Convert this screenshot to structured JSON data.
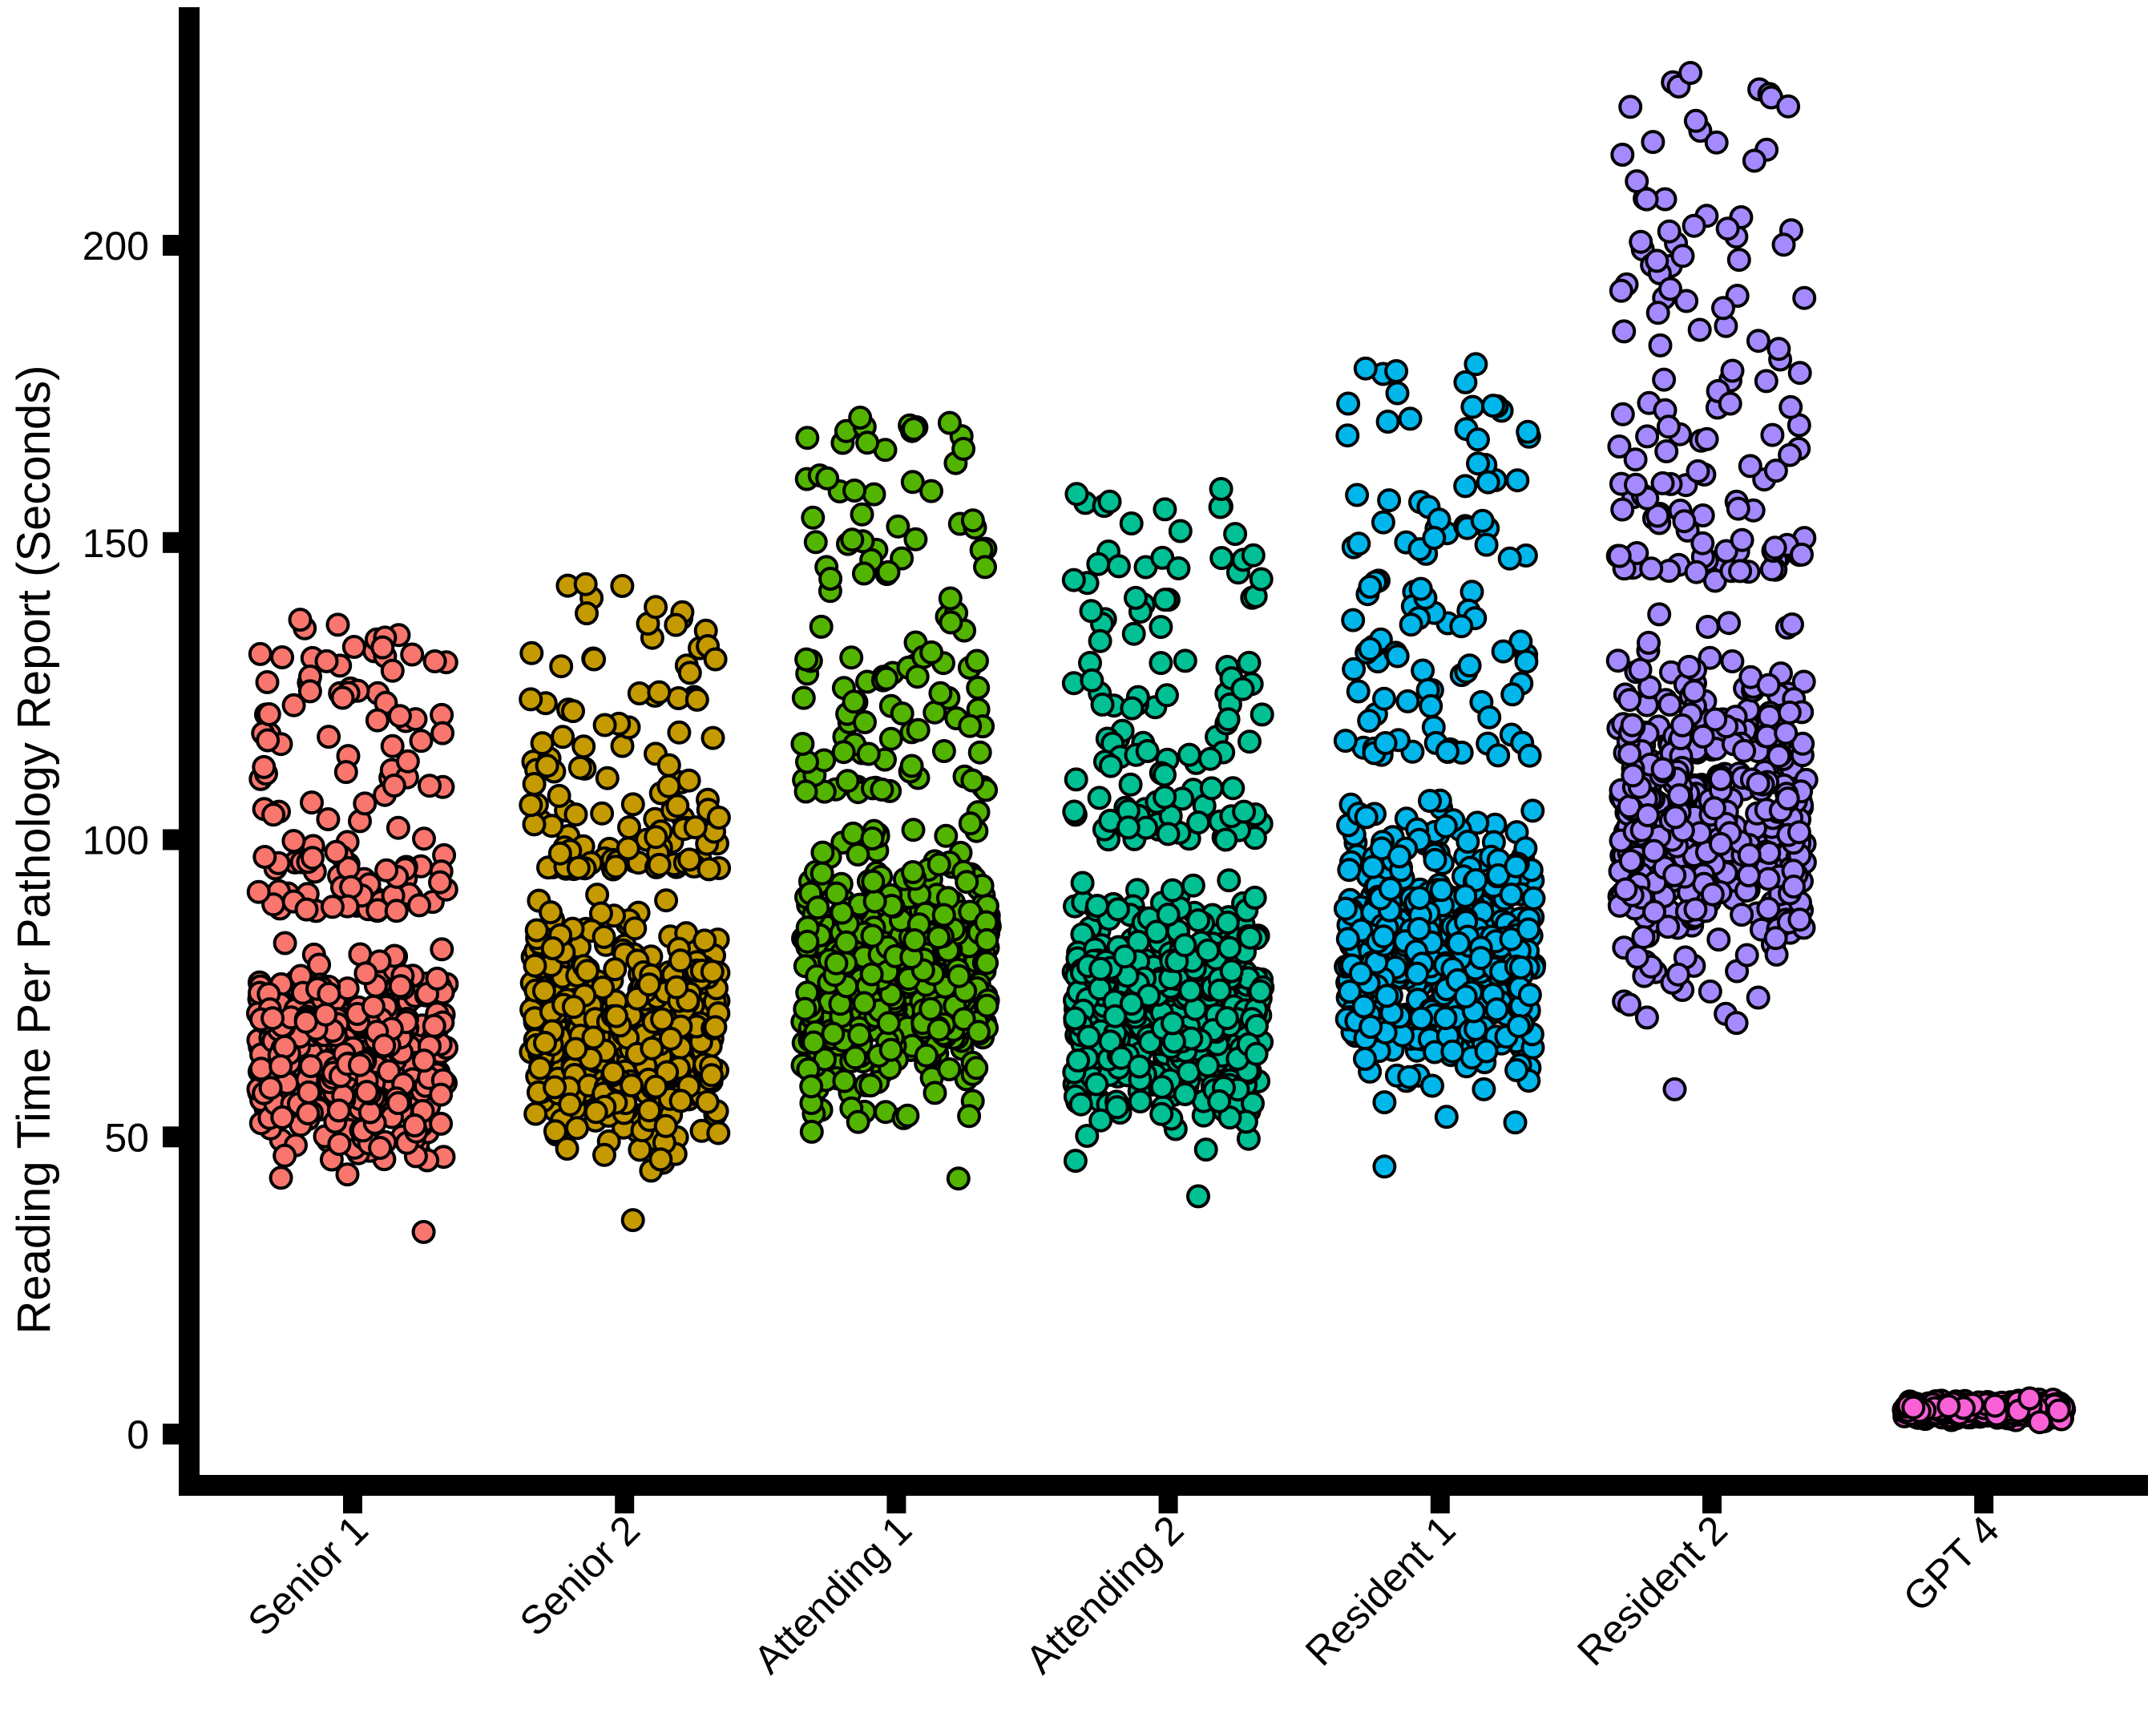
{
  "chart_data": {
    "type": "scatter",
    "subtype": "jittered-strip",
    "title": "",
    "xlabel": "",
    "ylabel": "Reading Time Per Pathology Report (Seconds)",
    "ylim": [
      -8,
      240
    ],
    "yticks": [
      0,
      50,
      100,
      150,
      200
    ],
    "grid": false,
    "legend": "none",
    "categories": [
      "Senior 1",
      "Senior 2",
      "Attending 1",
      "Attending 2",
      "Resident 1",
      "Resident 2",
      "GPT 4"
    ],
    "series": [
      {
        "name": "Senior 1",
        "color": "#F8766D",
        "n": 600,
        "min": 34,
        "max": 137,
        "core": [
          40,
          86
        ],
        "core_frac": 0.8,
        "tail": [
          88,
          137
        ]
      },
      {
        "name": "Senior 2",
        "color": "#C49A00",
        "n": 600,
        "min": 36,
        "max": 143,
        "core": [
          40,
          95
        ],
        "core_frac": 0.8,
        "tail": [
          95,
          143
        ]
      },
      {
        "name": "Attending 1",
        "color": "#53B400",
        "n": 600,
        "min": 43,
        "max": 171,
        "core": [
          47,
          108
        ],
        "core_frac": 0.8,
        "tail": [
          108,
          171
        ]
      },
      {
        "name": "Attending 2",
        "color": "#00C094",
        "n": 600,
        "min": 40,
        "max": 159,
        "core": [
          43,
          100
        ],
        "core_frac": 0.8,
        "tail": [
          100,
          159
        ]
      },
      {
        "name": "Resident 1",
        "color": "#00B6EB",
        "n": 600,
        "min": 45,
        "max": 180,
        "core": [
          50,
          114
        ],
        "core_frac": 0.82,
        "tail": [
          114,
          180
        ]
      },
      {
        "name": "Resident 2",
        "color": "#A58AFF",
        "n": 600,
        "min": 58,
        "max": 229,
        "core": [
          63,
          145
        ],
        "core_frac": 0.8,
        "tail": [
          145,
          229
        ]
      },
      {
        "name": "GPT 4",
        "color": "#FB61D7",
        "n": 600,
        "min": 2,
        "max": 6,
        "core": [
          2,
          6
        ],
        "core_frac": 1.0,
        "tail": [
          2,
          6
        ]
      }
    ]
  }
}
